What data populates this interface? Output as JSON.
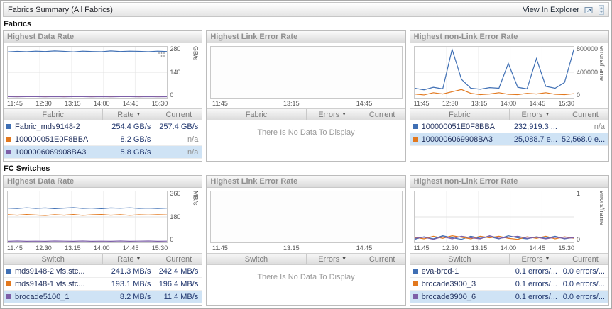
{
  "header": {
    "title": "Fabrics Summary (All Fabrics)",
    "explorer_link": "View In Explorer"
  },
  "icons": {
    "sort_desc": "▼"
  },
  "colors": {
    "selected_row": "#cfe3f5"
  },
  "sections": [
    {
      "label": "Fabrics",
      "panels": [
        {
          "title": "Highest Data Rate",
          "chart": {
            "type": "line",
            "ylabel": "GB/s",
            "ylim": [
              0,
              280
            ],
            "yticks": [
              "280",
              "140",
              "0"
            ],
            "xticks": [
              "11:45",
              "12:30",
              "13:15",
              "14:00",
              "14:45",
              "15:30"
            ],
            "series": [
              {
                "name": "Fabric_mds9148-2",
                "color": "#3f6fb4",
                "values": [
                  252,
                  255,
                  253,
                  256,
                  254,
                  257,
                  255,
                  252,
                  256,
                  254,
                  253,
                  257,
                  254,
                  256,
                  255,
                  253,
                  256,
                  254
                ]
              },
              {
                "name": "100000051E0F8BBA",
                "color": "#e2781e",
                "values": [
                  9,
                  8,
                  9,
                  8,
                  8,
                  9,
                  8,
                  9,
                  8,
                  8,
                  9,
                  8,
                  8,
                  9,
                  8,
                  8,
                  9,
                  8
                ]
              },
              {
                "name": "1000006069908BA3",
                "color": "#7d5fa8",
                "values": [
                  6,
                  5,
                  6,
                  6,
                  5,
                  6,
                  5,
                  6,
                  6,
                  5,
                  6,
                  5,
                  6,
                  6,
                  5,
                  6,
                  5,
                  6
                ]
              }
            ]
          },
          "table": {
            "columns": [
              "Fabric",
              "Rate",
              "Current"
            ],
            "sort_column": "Rate",
            "rows": [
              {
                "color": "#3f6fb4",
                "name": "Fabric_mds9148-2",
                "value": "254.4 GB/s",
                "current": "257.4 GB/s",
                "selected": false
              },
              {
                "color": "#e2781e",
                "name": "100000051E0F8BBA",
                "value": "8.2 GB/s",
                "current": "n/a",
                "selected": false
              },
              {
                "color": "#7d5fa8",
                "name": "1000006069908BA3",
                "value": "5.8 GB/s",
                "current": "n/a",
                "selected": true
              }
            ]
          }
        },
        {
          "title": "Highest Link Error Rate",
          "chart": {
            "type": "line",
            "empty": true,
            "xticks": [
              "11:45",
              "13:15",
              "14:45"
            ]
          },
          "table": {
            "columns": [
              "Fabric",
              "Errors",
              "Current"
            ],
            "sort_column": "Errors",
            "rows": [],
            "message": "There Is No Data To Display"
          }
        },
        {
          "title": "Highest non-Link Error Rate",
          "chart": {
            "type": "line",
            "ylabel": "errors/frame",
            "ylim": [
              0,
              800000
            ],
            "yticks": [
              "800000",
              "400000",
              "0"
            ],
            "xticks": [
              "11:45",
              "12:30",
              "13:15",
              "14:00",
              "14:45",
              "15:30"
            ],
            "series": [
              {
                "name": "100000051E0F8BBA",
                "color": "#3f6fb4",
                "values": [
                  150000,
                  125000,
                  165000,
                  140000,
                  760000,
                  290000,
                  150000,
                  135000,
                  160000,
                  150000,
                  540000,
                  165000,
                  140000,
                  615000,
                  180000,
                  150000,
                  240000,
                  760000
                ]
              },
              {
                "name": "1000006069908BA3",
                "color": "#e2781e",
                "values": [
                  60000,
                  45000,
                  80000,
                  60000,
                  95000,
                  130000,
                  70000,
                  50000,
                  60000,
                  80000,
                  55000,
                  50000,
                  70000,
                  60000,
                  80000,
                  55000,
                  50000,
                  65000
                ]
              }
            ]
          },
          "table": {
            "columns": [
              "Fabric",
              "Errors",
              "Current"
            ],
            "sort_column": "Errors",
            "rows": [
              {
                "color": "#3f6fb4",
                "name": "100000051E0F8BBA",
                "value": "232,919.3 ...",
                "current": "n/a",
                "selected": false
              },
              {
                "color": "#e2781e",
                "name": "1000006069908BA3",
                "value": "25,088.7 e...",
                "current": "52,568.0 e...",
                "selected": true
              }
            ]
          }
        }
      ]
    },
    {
      "label": "FC Switches",
      "panels": [
        {
          "title": "Highest Data Rate",
          "chart": {
            "type": "line",
            "ylabel": "MB/s",
            "ylim": [
              0,
              360
            ],
            "yticks": [
              "360",
              "180",
              "0"
            ],
            "xticks": [
              "11:45",
              "12:30",
              "13:15",
              "14:00",
              "14:45",
              "15:30"
            ],
            "series": [
              {
                "name": "mds9148-2.vfs.stc",
                "color": "#3f6fb4",
                "values": [
                  242,
                  239,
                  244,
                  240,
                  243,
                  238,
                  242,
                  245,
                  240,
                  242,
                  238,
                  243,
                  241,
                  244,
                  240,
                  242,
                  239,
                  242
                ]
              },
              {
                "name": "mds9148-1.vfs.stc",
                "color": "#e2781e",
                "values": [
                  196,
                  192,
                  197,
                  193,
                  190,
                  196,
                  192,
                  197,
                  191,
                  195,
                  197,
                  192,
                  196,
                  191,
                  195,
                  193,
                  196,
                  194
                ]
              },
              {
                "name": "brocade5100_1",
                "color": "#7d5fa8",
                "values": [
                  8,
                  10,
                  8,
                  9,
                  8,
                  10,
                  9,
                  8,
                  10,
                  8,
                  9,
                  8,
                  10,
                  8,
                  9,
                  10,
                  8,
                  9
                ]
              }
            ]
          },
          "table": {
            "columns": [
              "Switch",
              "Rate",
              "Current"
            ],
            "sort_column": "Rate",
            "rows": [
              {
                "color": "#3f6fb4",
                "name": "mds9148-2.vfs.stc...",
                "value": "241.3 MB/s",
                "current": "242.4 MB/s",
                "selected": false
              },
              {
                "color": "#e2781e",
                "name": "mds9148-1.vfs.stc...",
                "value": "193.1 MB/s",
                "current": "196.4 MB/s",
                "selected": false
              },
              {
                "color": "#7d5fa8",
                "name": "brocade5100_1",
                "value": "8.2 MB/s",
                "current": "11.4 MB/s",
                "selected": true
              }
            ]
          }
        },
        {
          "title": "Highest Link Error Rate",
          "chart": {
            "type": "line",
            "empty": true,
            "xticks": [
              "11:45",
              "13:15",
              "14:45"
            ]
          },
          "table": {
            "columns": [
              "Switch",
              "Errors",
              "Current"
            ],
            "sort_column": "Errors",
            "rows": [],
            "message": "There Is No Data To Display"
          }
        },
        {
          "title": "Highest non-Link Error Rate",
          "chart": {
            "type": "line",
            "ylabel": "errors/frame",
            "ylim": [
              0,
              1
            ],
            "yticks": [
              "1",
              "0"
            ],
            "xticks": [
              "11:45",
              "12:30",
              "13:15",
              "14:00",
              "14:45",
              "15:30"
            ],
            "series": [
              {
                "name": "eva-brcd-1",
                "color": "#3f6fb4",
                "values": [
                  0.06,
                  0.11,
                  0.07,
                  0.13,
                  0.09,
                  0.06,
                  0.12,
                  0.08,
                  0.11,
                  0.07,
                  0.13,
                  0.09,
                  0.07,
                  0.11,
                  0.08,
                  0.12,
                  0.07,
                  0.1
                ]
              },
              {
                "name": "brocade3900_3",
                "color": "#e2781e",
                "values": [
                  0.1,
                  0.07,
                  0.12,
                  0.08,
                  0.13,
                  0.1,
                  0.07,
                  0.12,
                  0.09,
                  0.12,
                  0.08,
                  0.06,
                  0.11,
                  0.08,
                  0.12,
                  0.07,
                  0.11,
                  0.08
                ]
              },
              {
                "name": "brocade3900_6",
                "color": "#7d5fa8",
                "values": [
                  0.08,
                  0.1,
                  0.06,
                  0.11,
                  0.07,
                  0.12,
                  0.09,
                  0.07,
                  0.13,
                  0.08,
                  0.1,
                  0.12,
                  0.08,
                  0.1,
                  0.07,
                  0.1,
                  0.08,
                  0.09
                ]
              }
            ]
          },
          "table": {
            "columns": [
              "Switch",
              "Errors",
              "Current"
            ],
            "sort_column": "Errors",
            "rows": [
              {
                "color": "#3f6fb4",
                "name": "eva-brcd-1",
                "value": "0.1 errors/...",
                "current": "0.0 errors/...",
                "selected": false
              },
              {
                "color": "#e2781e",
                "name": "brocade3900_3",
                "value": "0.1 errors/...",
                "current": "0.0 errors/...",
                "selected": false
              },
              {
                "color": "#7d5fa8",
                "name": "brocade3900_6",
                "value": "0.1 errors/...",
                "current": "0.0 errors/...",
                "selected": true
              }
            ]
          }
        }
      ]
    }
  ]
}
